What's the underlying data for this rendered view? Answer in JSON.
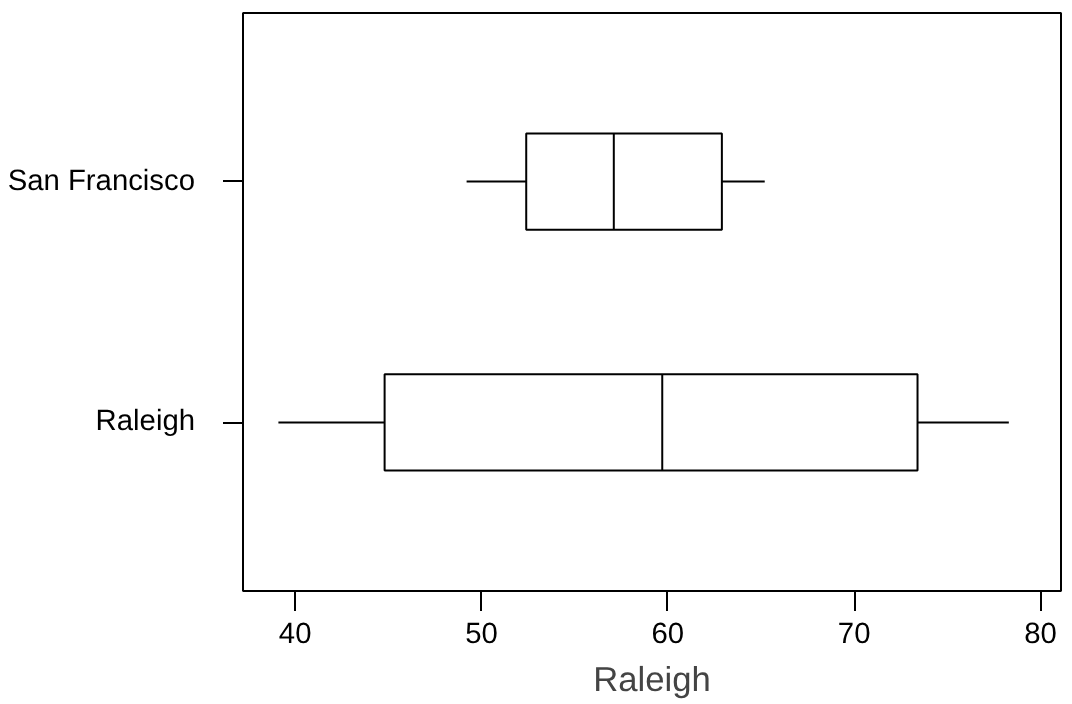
{
  "chart_data": {
    "type": "box",
    "orientation": "horizontal",
    "xlabel": "Raleigh",
    "categories": [
      "San Francisco",
      "Raleigh"
    ],
    "boxes": [
      {
        "low": 49.2,
        "q1": 52.4,
        "median": 57.1,
        "q3": 62.9,
        "high": 65.2
      },
      {
        "low": 39.1,
        "q1": 44.8,
        "median": 59.7,
        "q3": 73.4,
        "high": 78.3
      }
    ],
    "xlim": [
      37.2,
      81.1
    ],
    "xticks": [
      40,
      50,
      60,
      70,
      80
    ],
    "grid": false
  }
}
